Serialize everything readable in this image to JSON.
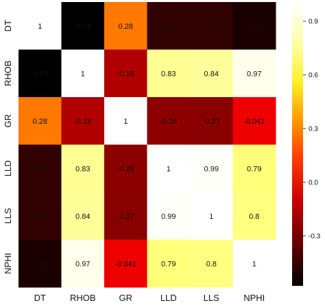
{
  "chart_data": {
    "type": "heatmap",
    "title": "",
    "xlabel": "",
    "ylabel": "",
    "rows": [
      "DT",
      "RHOB",
      "GR",
      "LLD",
      "LLS",
      "NPHI"
    ],
    "cols": [
      "DT",
      "RHOB",
      "GR",
      "LLD",
      "LLS",
      "NPHI"
    ],
    "values": [
      [
        1,
        -0.58,
        0.28,
        -0.47,
        -0.47,
        -0.52
      ],
      [
        -0.58,
        1,
        -0.18,
        0.83,
        0.84,
        0.97
      ],
      [
        0.28,
        -0.18,
        1,
        -0.26,
        -0.27,
        -0.041
      ],
      [
        -0.47,
        0.83,
        -0.26,
        1,
        0.99,
        0.79
      ],
      [
        -0.47,
        0.84,
        -0.27,
        0.99,
        1,
        0.8
      ],
      [
        -0.52,
        0.97,
        -0.041,
        0.79,
        0.8,
        1
      ]
    ],
    "annotations": [
      [
        "1",
        "-0.58",
        "0.28",
        "-0.47",
        "-0.47",
        "-0.52"
      ],
      [
        "-0.58",
        "1",
        "-0.18",
        "0.83",
        "0.84",
        "0.97"
      ],
      [
        "0.28",
        "-0.18",
        "1",
        "-0.26",
        "-0.27",
        "-0.041"
      ],
      [
        "-0.47",
        "0.83",
        "-0.26",
        "1",
        "0.99",
        "0.79"
      ],
      [
        "-0.47",
        "0.84",
        "-0.27",
        "0.99",
        "1",
        "0.8"
      ],
      [
        "-0.52",
        "0.97",
        "-0.041",
        "0.79",
        "0.8",
        "1"
      ]
    ],
    "colormap": "hot",
    "vmin": -0.58,
    "vmax": 1,
    "colorbar": {
      "ticks": [
        0.9,
        0.6,
        0.3,
        0.0,
        -0.3
      ],
      "tick_labels": [
        "0.9",
        "0.6",
        "0.3",
        "0.0",
        "-0.3"
      ]
    }
  }
}
